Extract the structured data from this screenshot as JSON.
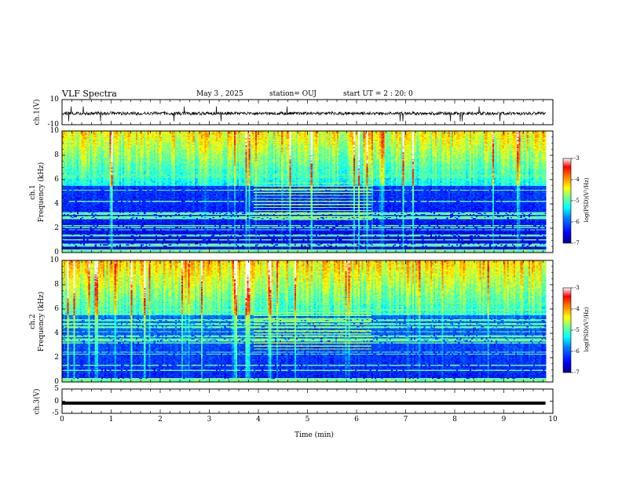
{
  "header": {
    "title": "VLF Spectra",
    "date": "May 3 , 2025",
    "station": "station= OUJ",
    "start": "start UT = 2 : 20: 0"
  },
  "colors": {
    "background": "#ffffff",
    "axis": "#000000",
    "colormap": [
      "#00007f",
      "#0000ff",
      "#0080ff",
      "#00ffff",
      "#80ff80",
      "#ffff00",
      "#ff8000",
      "#ff0000",
      "#ffffff"
    ]
  },
  "chart_data": [
    {
      "type": "line",
      "id": "ch1-waveform",
      "ylabel": "ch.1(V)",
      "ylim": [
        -10,
        10
      ],
      "y_ticks": [
        "10",
        "-10"
      ],
      "baseline": -1,
      "xlim": [
        0,
        10
      ],
      "data_end": 9.85
    },
    {
      "type": "heatmap",
      "id": "ch1-spectrogram",
      "ylabel": "ch.1\nFrequency (kHz)",
      "ylim": [
        0,
        10
      ],
      "y_ticks": [
        "0",
        "2",
        "4",
        "6",
        "8",
        "10"
      ],
      "xlim": [
        0,
        10
      ],
      "data_end": 9.85,
      "colorbar": {
        "label": "log(PSD)(V²/Hz)",
        "range": [
          -7,
          -3
        ],
        "ticks": [
          "-3",
          "-4",
          "-5",
          "-6",
          "-7"
        ]
      }
    },
    {
      "type": "heatmap",
      "id": "ch2-spectrogram",
      "ylabel": "ch.2\nFrequency (kHz)",
      "ylim": [
        0,
        10
      ],
      "y_ticks": [
        "0",
        "2",
        "4",
        "6",
        "8",
        "10"
      ],
      "xlim": [
        0,
        10
      ],
      "data_end": 9.85,
      "colorbar": {
        "label": "log(PSD)(V²/Hz)",
        "range": [
          -7,
          -3
        ],
        "ticks": [
          "-3",
          "-4",
          "-5",
          "-6",
          "-7"
        ]
      }
    },
    {
      "type": "line",
      "id": "ch3-waveform",
      "ylabel": "ch.3(V)",
      "ylim": [
        -5,
        5
      ],
      "y_ticks": [
        "5",
        "0",
        "-5"
      ],
      "baseline": -0.8,
      "xlim": [
        0,
        10
      ],
      "data_end": 9.85
    }
  ],
  "x_axis": {
    "label": "Time (min)",
    "ticks": [
      "0",
      "1",
      "2",
      "3",
      "4",
      "5",
      "6",
      "7",
      "8",
      "9",
      "10"
    ]
  }
}
